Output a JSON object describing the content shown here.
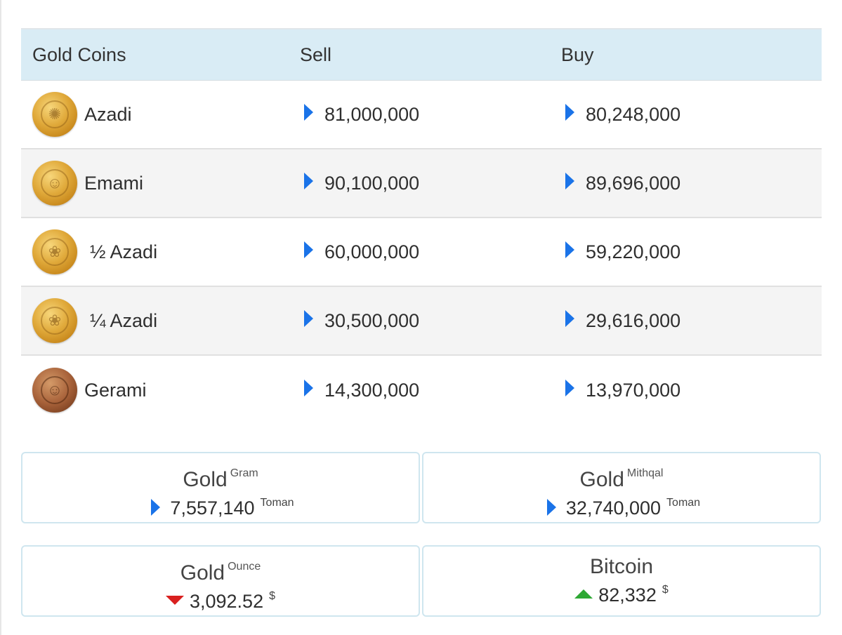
{
  "table": {
    "headers": {
      "name": "Gold Coins",
      "sell": "Sell",
      "buy": "Buy"
    },
    "rows": [
      {
        "name": "Azadi",
        "sell": "81,000,000",
        "buy": "80,248,000",
        "coin": "azadi-coin-icon"
      },
      {
        "name": "Emami",
        "sell": "90,100,000",
        "buy": "89,696,000",
        "coin": "emami-coin-icon"
      },
      {
        "name": "½ Azadi",
        "sell": "60,000,000",
        "buy": "59,220,000",
        "coin": "half-azadi-coin-icon"
      },
      {
        "name": "¼ Azadi",
        "sell": "30,500,000",
        "buy": "29,616,000",
        "coin": "quarter-azadi-coin-icon"
      },
      {
        "name": "Gerami",
        "sell": "14,300,000",
        "buy": "13,970,000",
        "coin": "gerami-coin-icon"
      }
    ],
    "trend_icon": "triangle-right-icon",
    "trend_color": "#1a73e8"
  },
  "cards": [
    {
      "title": "Gold",
      "sub": "Gram",
      "value": "7,557,140",
      "unit": "Toman",
      "trend": "neutral",
      "trend_color": "#1a73e8"
    },
    {
      "title": "Gold",
      "sub": "Mithqal",
      "value": "32,740,000",
      "unit": "Toman",
      "trend": "neutral",
      "trend_color": "#1a73e8"
    },
    {
      "title": "Gold",
      "sub": "Ounce",
      "value": "3,092.52",
      "unit": "$",
      "trend": "down",
      "trend_color": "#d9201f"
    },
    {
      "title": "Bitcoin",
      "sub": "",
      "value": "82,332",
      "unit": "$",
      "trend": "up",
      "trend_color": "#2ea834"
    }
  ],
  "colors": {
    "header_bg": "#d9ecf5",
    "alt_row_bg": "#f4f4f4",
    "card_border": "#cfe6ef"
  }
}
